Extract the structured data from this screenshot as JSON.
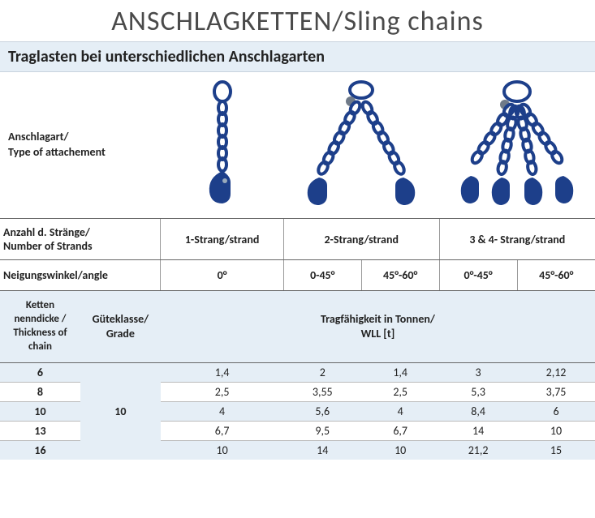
{
  "title": "ANSCHLAGKETTEN/Sling chains",
  "subtitle": "Traglasten bei unterschiedlichen Anschlagarten",
  "labels": {
    "attach": "Anschlagart/\nType of attachement",
    "strands": "Anzahl d. Stränge/\nNumber of Strands",
    "angle": "Neigungswinkel/angle",
    "thick": "Ketten nenndicke / Thickness of chain",
    "grade": "Güteklasse/ Grade",
    "wll": "Tragfähigkeit in Tonnen/\nWLL [t]"
  },
  "strand_cols": [
    "1-Strang/strand",
    "2-Strang/strand",
    "3 & 4- Strang/strand"
  ],
  "angle_cols": [
    "0°",
    "0-45°",
    "45°-60°",
    "0°-45°",
    "45°-60°"
  ],
  "grade_value": "10",
  "rows": [
    {
      "thick": "6",
      "v": [
        "1,4",
        "2",
        "1,4",
        "3",
        "2,12"
      ]
    },
    {
      "thick": "8",
      "v": [
        "2,5",
        "3,55",
        "2,5",
        "5,3",
        "3,75"
      ]
    },
    {
      "thick": "10",
      "v": [
        "4",
        "5,6",
        "4",
        "8,4",
        "6"
      ]
    },
    {
      "thick": "13",
      "v": [
        "6,7",
        "9,5",
        "6,7",
        "14",
        "10"
      ]
    },
    {
      "thick": "16",
      "v": [
        "10",
        "14",
        "10",
        "21,2",
        "15"
      ]
    }
  ],
  "colors": {
    "chain": "#1d3f8a",
    "band_bg": "#e5eef6"
  }
}
